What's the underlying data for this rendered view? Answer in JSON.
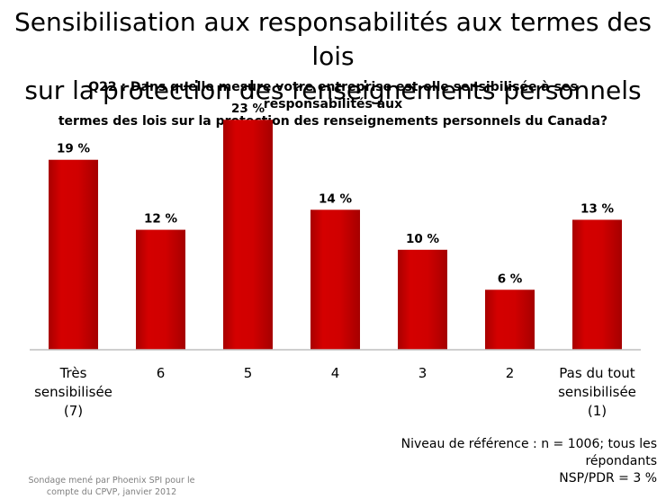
{
  "title_line1": "Sensibilisation aux responsabilités aux termes des lois",
  "title_line2": "sur la protection des renseignements personnels",
  "question_line1": "Q22 : Dans quelle mesure votre entreprise est-elle sensibilisée à ses responsabilités aux",
  "question_line2": "termes des lois sur la protection des renseignements personnels du Canada?",
  "reference_line1": "Niveau de référence : n = 1006; tous les",
  "reference_line2": "répondants",
  "reference_line3": "NSP/PDR = 3 %",
  "source_line1": "Sondage mené par Phoenix SPI pour le",
  "source_line2": "compte du CPVP, janvier 2012",
  "chart_data": {
    "type": "bar",
    "categories": [
      [
        "Très",
        "sensibilisée",
        "(7)"
      ],
      [
        "6"
      ],
      [
        "5"
      ],
      [
        "4"
      ],
      [
        "3"
      ],
      [
        "2"
      ],
      [
        "Pas du tout",
        "sensibilisée",
        "(1)"
      ]
    ],
    "values": [
      19,
      12,
      23,
      14,
      10,
      6,
      13
    ],
    "value_labels": [
      "19 %",
      "12 %",
      "23 %",
      "14 %",
      "10 %",
      "6 %",
      "13 %"
    ],
    "ylim": [
      0,
      25
    ],
    "grid": false,
    "bar_color": "#cc0000"
  }
}
